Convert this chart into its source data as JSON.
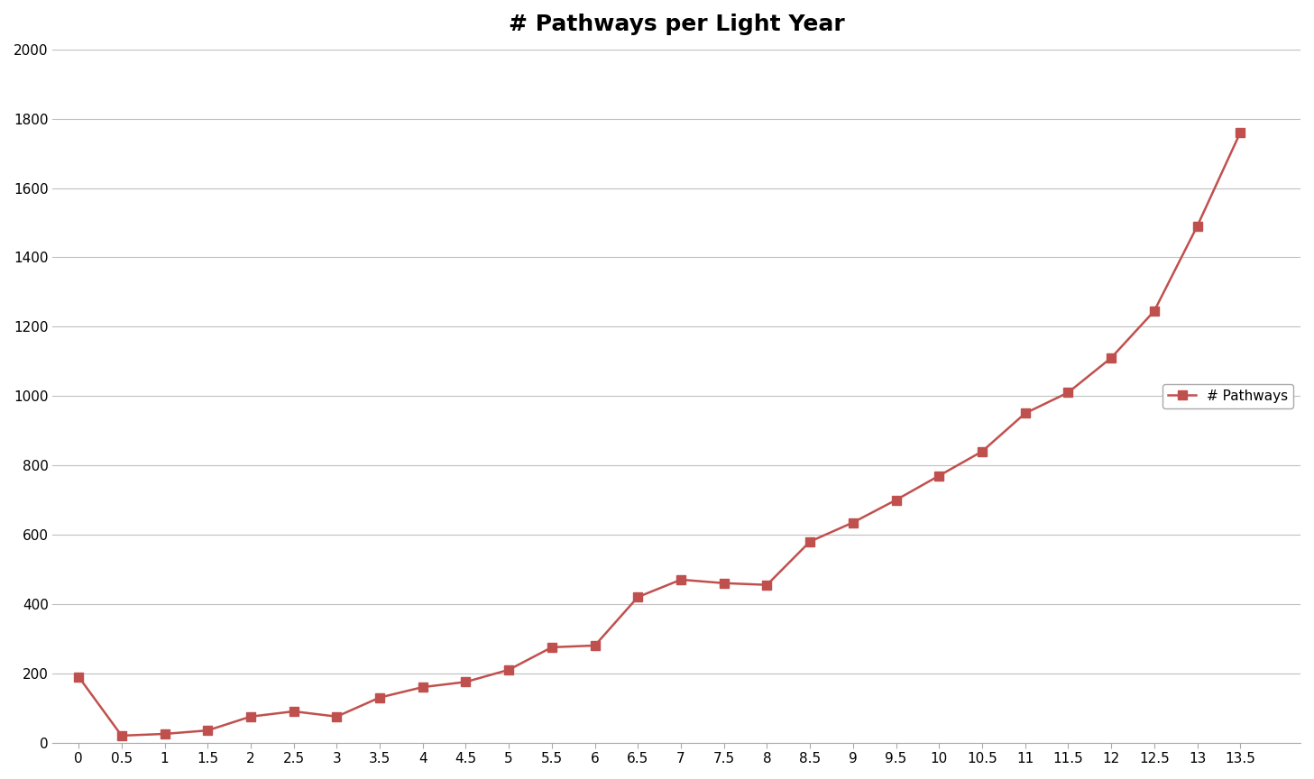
{
  "title": "# Pathways per Light Year",
  "series_x": [
    0,
    0.5,
    1,
    1.5,
    2,
    2.5,
    3,
    3.5,
    4,
    4.5,
    5,
    5.5,
    6,
    6.5,
    7,
    7.5,
    8,
    8.5,
    9,
    9.5,
    10,
    10.5,
    11,
    11.5,
    12,
    12.5,
    13,
    13.5
  ],
  "series_y": [
    190,
    20,
    25,
    35,
    75,
    90,
    75,
    130,
    160,
    175,
    210,
    275,
    280,
    420,
    470,
    460,
    455,
    580,
    635,
    700,
    770,
    840,
    950,
    1010,
    1110,
    1245,
    1490,
    1760
  ],
  "line_color": "#C0504D",
  "marker": "s",
  "marker_size": 7,
  "legend_label": "# Pathways",
  "ylim": [
    0,
    2000
  ],
  "yticks": [
    0,
    200,
    400,
    600,
    800,
    1000,
    1200,
    1400,
    1600,
    1800,
    2000
  ],
  "xticks": [
    0,
    0.5,
    1,
    1.5,
    2,
    2.5,
    3,
    3.5,
    4,
    4.5,
    5,
    5.5,
    6,
    6.5,
    7,
    7.5,
    8,
    8.5,
    9,
    9.5,
    10,
    10.5,
    11,
    11.5,
    12,
    12.5,
    13,
    13.5
  ],
  "xtick_labels": [
    "0",
    "0.5",
    "1",
    "1.5",
    "2",
    "2.5",
    "3",
    "3.5",
    "4",
    "4.5",
    "5",
    "5.5",
    "6",
    "6.5",
    "7",
    "7.5",
    "8",
    "8.5",
    "9",
    "9.5",
    "10",
    "10.5",
    "11",
    "11.5",
    "12",
    "12.5",
    "13",
    "13.5"
  ],
  "title_fontsize": 18,
  "background_color": "#ffffff",
  "grid_color": "#c0c0c0"
}
